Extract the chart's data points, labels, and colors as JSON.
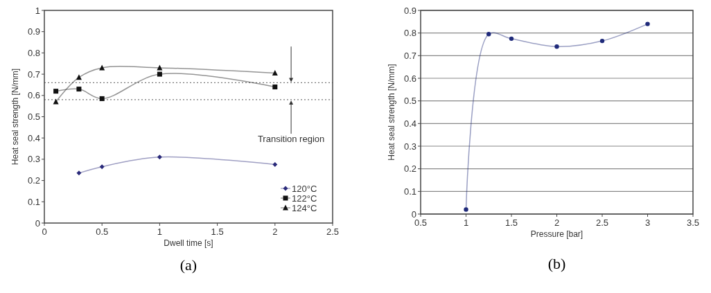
{
  "chart_data": [
    {
      "type": "line",
      "xlabel": "Dwell time [s]",
      "ylabel": "Heat seal strength [N/mm]",
      "xlim": [
        0,
        2.5
      ],
      "xticks": [
        0,
        0.5,
        1,
        1.5,
        2,
        2.5
      ],
      "ylim": [
        0,
        1
      ],
      "yticks": [
        0,
        0.1,
        0.2,
        0.3,
        0.4,
        0.5,
        0.6,
        0.7,
        0.8,
        0.9,
        1
      ],
      "grid": false,
      "legend": "bottom right",
      "series": [
        {
          "name": "120°C",
          "color": "#2a2a7a",
          "marker": "diamond",
          "x": [
            0.3,
            0.5,
            1,
            2
          ],
          "values": [
            0.235,
            0.265,
            0.31,
            0.275
          ]
        },
        {
          "name": "122°C",
          "color": "#111111",
          "marker": "square",
          "x": [
            0.1,
            0.3,
            0.5,
            1,
            2
          ],
          "values": [
            0.62,
            0.63,
            0.585,
            0.7,
            0.64
          ]
        },
        {
          "name": "124°C",
          "color": "#111111",
          "marker": "triangle",
          "x": [
            0.1,
            0.3,
            0.5,
            1,
            2
          ],
          "values": [
            0.57,
            0.685,
            0.73,
            0.73,
            0.705
          ]
        }
      ],
      "ref_lines": [
        {
          "axis": "y",
          "value": 0.66,
          "line_style": "dotted",
          "color": "#777777"
        },
        {
          "axis": "y",
          "value": 0.58,
          "line_style": "dotted",
          "color": "#777777"
        }
      ],
      "annotations": [
        {
          "text": "Transition region",
          "x": 2.14,
          "y": 0.58
        },
        "(a)"
      ]
    },
    {
      "type": "line",
      "xlabel": "Pressure [bar]",
      "ylabel": "Heat seal strength [N/mm]",
      "xlim": [
        0.5,
        3.5
      ],
      "xticks": [
        0.5,
        1,
        1.5,
        2,
        2.5,
        3,
        3.5
      ],
      "ylim": [
        0,
        0.9
      ],
      "yticks": [
        0,
        0.1,
        0.2,
        0.3,
        0.4,
        0.5,
        0.6,
        0.7,
        0.8,
        0.9
      ],
      "grid": "y",
      "marker": "circle",
      "series": [
        {
          "color": "#1f2a7a",
          "x": [
            1,
            1.25,
            1.5,
            2,
            2.5,
            3
          ],
          "values": [
            0.02,
            0.795,
            0.775,
            0.74,
            0.765,
            0.84
          ]
        }
      ],
      "annotations": [
        "(b)"
      ]
    }
  ]
}
